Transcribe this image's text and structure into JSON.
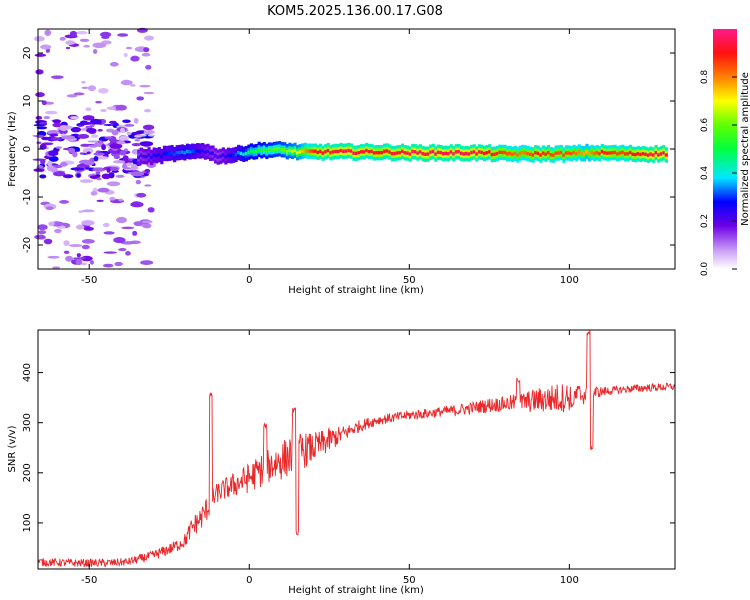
{
  "title": "KOM5.2025.136.00.17.G08",
  "colors": {
    "snr_line": "#e8282b",
    "axis": "#000000",
    "background": "#ffffff"
  },
  "chart_data": [
    {
      "type": "heatmap",
      "name": "spectrogram",
      "xlabel": "Height of straight line (km)",
      "ylabel": "Frequency (Hz)",
      "xlim": [
        -66,
        133
      ],
      "ylim": [
        -25,
        25
      ],
      "xticks": [
        -50,
        0,
        50,
        100
      ],
      "yticks": [
        -20,
        -10,
        0,
        10,
        20
      ],
      "grid": false,
      "colorbar": {
        "label": "Normalized spectral amplitude",
        "range": [
          0.0,
          1.0
        ],
        "ticks": [
          0.0,
          0.2,
          0.4,
          0.6,
          0.8
        ],
        "tick_labels": [
          "0.0",
          "0.2",
          "0.4",
          "0.6",
          "0.8"
        ],
        "colormap": "rainbow (white-violet-blue-cyan-green-yellow-red-magenta)"
      },
      "ridge": {
        "description": "dominant frequency ridge (x in km, y in Hz, amplitude 0-1)",
        "x": [
          -35,
          -30,
          -25,
          -20,
          -15,
          -10,
          -5,
          0,
          5,
          10,
          15,
          20,
          30,
          40,
          50,
          60,
          70,
          80,
          85,
          90,
          95,
          100,
          105,
          110,
          115,
          120,
          125,
          130
        ],
        "y": [
          -1.5,
          -1.5,
          -1.0,
          -0.8,
          -0.2,
          -1.5,
          -1.2,
          -0.5,
          -0.2,
          -0.2,
          -0.6,
          -0.6,
          -0.6,
          -0.6,
          -0.8,
          -0.8,
          -0.8,
          -1.0,
          -1.0,
          -1.0,
          -1.0,
          -1.0,
          -0.8,
          -0.8,
          -0.9,
          -1.0,
          -1.0,
          -1.0
        ],
        "amplitude": [
          0.2,
          0.25,
          0.3,
          0.35,
          0.25,
          0.2,
          0.3,
          0.5,
          0.55,
          0.6,
          0.7,
          0.9,
          0.95,
          0.9,
          0.95,
          0.95,
          0.95,
          0.85,
          0.8,
          0.9,
          0.85,
          0.85,
          0.75,
          0.9,
          0.85,
          0.9,
          0.95,
          0.95
        ]
      },
      "noise_region": {
        "description": "scattered low-amplitude patches",
        "x_range": [
          -66,
          -30
        ],
        "y_range": [
          -25,
          25
        ],
        "amplitude_range": [
          0.0,
          0.2
        ]
      }
    },
    {
      "type": "line",
      "name": "snr",
      "xlabel": "Height of straight line (km)",
      "ylabel": "SNR (v/v)",
      "xlim": [
        -66,
        133
      ],
      "ylim": [
        8,
        485
      ],
      "xticks": [
        -50,
        0,
        50,
        100
      ],
      "yticks": [
        100,
        200,
        300,
        400
      ],
      "grid": false,
      "series": [
        {
          "envelope_x": [
            -66,
            -55,
            -45,
            -38,
            -30,
            -24,
            -20,
            -18,
            -15,
            -12,
            -10,
            -5,
            0,
            5,
            10,
            15,
            20,
            25,
            30,
            35,
            40,
            45,
            50,
            55,
            60,
            65,
            70,
            75,
            80,
            85,
            90,
            95,
            100,
            105,
            110,
            115,
            120,
            125,
            133
          ],
          "envelope_y": [
            22,
            20,
            20,
            22,
            35,
            50,
            65,
            90,
            110,
            140,
            160,
            175,
            190,
            210,
            225,
            240,
            250,
            265,
            280,
            295,
            305,
            310,
            315,
            318,
            322,
            325,
            330,
            335,
            338,
            340,
            345,
            348,
            352,
            357,
            362,
            365,
            368,
            370,
            372
          ],
          "noise_amplitude": [
            8,
            8,
            8,
            8,
            10,
            12,
            15,
            20,
            25,
            25,
            20,
            25,
            30,
            35,
            40,
            40,
            30,
            25,
            15,
            12,
            10,
            10,
            10,
            10,
            10,
            12,
            12,
            15,
            15,
            20,
            25,
            30,
            30,
            20,
            10,
            8,
            8,
            8,
            8
          ],
          "spikes": [
            {
              "x": -12,
              "y": 355
            },
            {
              "x": 5,
              "y": 295
            },
            {
              "x": 14,
              "y": 325
            },
            {
              "x": 15,
              "y": 80
            },
            {
              "x": 84,
              "y": 385
            },
            {
              "x": 101,
              "y": 335
            },
            {
              "x": 106,
              "y": 480
            },
            {
              "x": 107,
              "y": 250
            }
          ]
        }
      ]
    }
  ]
}
